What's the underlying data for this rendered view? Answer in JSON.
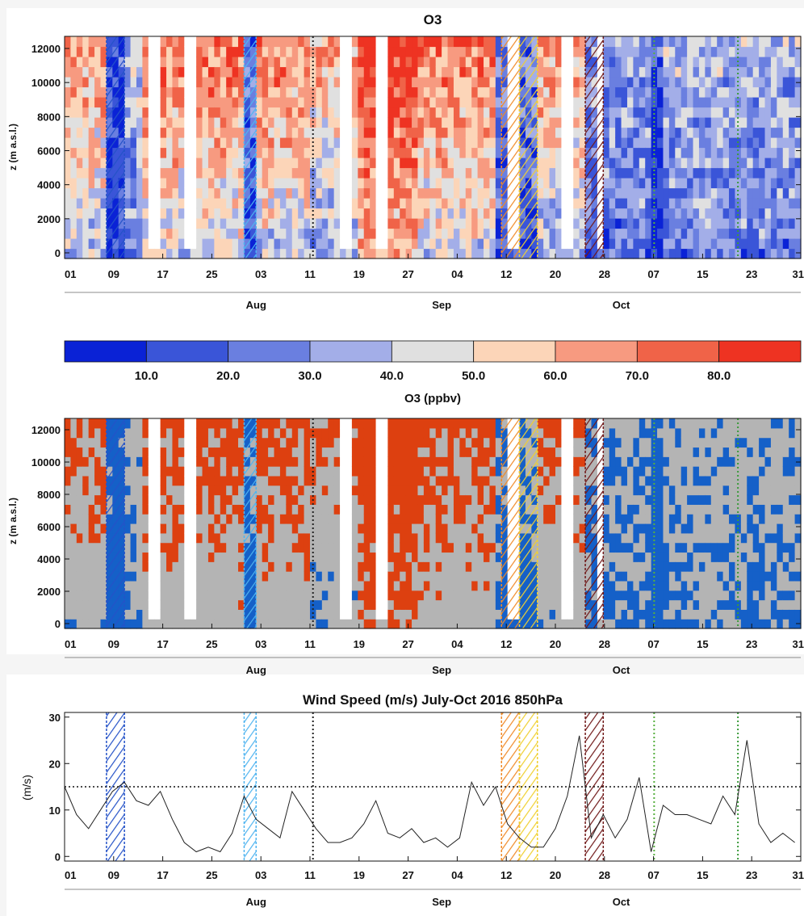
{
  "chart_data": [
    {
      "type": "heatmap",
      "title": "O3",
      "ylabel": "z (m a.s.l.)",
      "yticks": [
        0,
        2000,
        4000,
        6000,
        8000,
        10000,
        12000
      ],
      "ylim": [
        0,
        12000
      ],
      "xticks": [
        "01",
        "09",
        "17",
        "25",
        "03",
        "11",
        "19",
        "27",
        "04",
        "12",
        "20",
        "28",
        "07",
        "15",
        "23",
        "31"
      ],
      "month_labels": [
        "Aug",
        "Sep",
        "Oct"
      ],
      "colorbar": {
        "label": "O3 (ppbv)",
        "ticks": [
          "10.0",
          "20.0",
          "30.0",
          "40.0",
          "50.0",
          "60.0",
          "70.0",
          "80.0"
        ],
        "colors": [
          "#0a22d6",
          "#3a55d8",
          "#6a7fe0",
          "#a3aee8",
          "#e0e0e0",
          "#fcd5b8",
          "#f79a80",
          "#f06348",
          "#ee3322"
        ]
      }
    },
    {
      "type": "heatmap",
      "title": "O3",
      "ylabel": "z (m a.s.l.)",
      "yticks": [
        0,
        2000,
        4000,
        6000,
        8000,
        10000,
        12000
      ],
      "ylim": [
        0,
        12000
      ],
      "xticks": [
        "01",
        "09",
        "17",
        "25",
        "03",
        "11",
        "19",
        "27",
        "04",
        "12",
        "20",
        "28",
        "07",
        "15",
        "23",
        "31"
      ],
      "month_labels": [
        "Aug",
        "Sep",
        "Oct"
      ],
      "colors": {
        "low": "#1560c8",
        "mid": "#b4b4b4",
        "high": "#dd4010"
      }
    },
    {
      "type": "line",
      "title": "Wind Speed (m/s) July-Oct 2016 850hPa",
      "ylabel": "(m/s)",
      "yticks": [
        0,
        10,
        20,
        30
      ],
      "ylim": [
        -1,
        31
      ],
      "threshold": 15,
      "xticks": [
        "01",
        "09",
        "17",
        "25",
        "03",
        "11",
        "19",
        "27",
        "04",
        "12",
        "20",
        "28",
        "07",
        "15",
        "23",
        "31"
      ],
      "month_labels": [
        "Aug",
        "Sep",
        "Oct"
      ],
      "x_days": [
        1,
        3,
        5,
        7,
        9,
        11,
        13,
        15,
        17,
        19,
        21,
        23,
        25,
        27,
        29,
        31,
        33,
        35,
        37,
        39,
        41,
        43,
        45,
        47,
        49,
        51,
        53,
        55,
        57,
        59,
        61,
        63,
        65,
        67,
        69,
        71,
        73,
        75,
        77,
        79,
        81,
        83,
        85,
        87,
        89,
        91,
        93,
        95,
        97,
        99,
        101,
        103,
        105,
        107,
        109,
        111,
        113,
        115,
        117,
        119,
        121,
        123
      ],
      "values": [
        15,
        9,
        6,
        10,
        14,
        16,
        12,
        11,
        14,
        8,
        3,
        1,
        2,
        1,
        5,
        13,
        8,
        6,
        4,
        14,
        10,
        6,
        3,
        3,
        4,
        7,
        12,
        5,
        4,
        6,
        3,
        4,
        2,
        4,
        16,
        11,
        15,
        7,
        4,
        2,
        2,
        6,
        13,
        26,
        4,
        9,
        4,
        8,
        17,
        1,
        11,
        9,
        9,
        8,
        7,
        13,
        9,
        25,
        7,
        3,
        5,
        3
      ],
      "event_marks": [
        {
          "days": [
            8,
            10
          ],
          "color": "#2452c8",
          "style": "hatch"
        },
        {
          "days": [
            31,
            32
          ],
          "color": "#4fb4f0",
          "style": "hatch"
        },
        {
          "days": [
            42
          ],
          "color": "#222222",
          "style": "dotted"
        },
        {
          "days": [
            74,
            76
          ],
          "color": "#f08a28",
          "style": "hatch"
        },
        {
          "days": [
            77,
            79
          ],
          "color": "#f0d030",
          "style": "hatch"
        },
        {
          "days": [
            88,
            90
          ],
          "color": "#701818",
          "style": "hatch"
        },
        {
          "days": [
            99
          ],
          "color": "#58b040",
          "style": "dotted"
        },
        {
          "days": [
            113
          ],
          "color": "#3a9a3a",
          "style": "dotted"
        }
      ]
    }
  ]
}
